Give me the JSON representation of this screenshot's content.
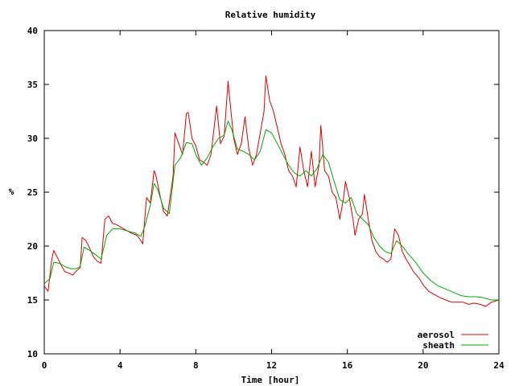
{
  "chart_data": {
    "type": "line",
    "title": "Relative humidity",
    "xlabel": "Time [hour]",
    "ylabel": "%",
    "xlim": [
      0,
      24
    ],
    "ylim": [
      10,
      40
    ],
    "x_ticks": [
      0,
      4,
      8,
      12,
      16,
      20,
      24
    ],
    "y_ticks": [
      10,
      15,
      20,
      25,
      30,
      35,
      40
    ],
    "grid": false,
    "legend_position": "bottom-right",
    "series": [
      {
        "name": "aerosol",
        "color": "#dd0000",
        "points": [
          [
            0.0,
            16.3
          ],
          [
            0.2,
            15.8
          ],
          [
            0.4,
            18.8
          ],
          [
            0.5,
            19.6
          ],
          [
            0.7,
            18.9
          ],
          [
            0.9,
            18.2
          ],
          [
            1.1,
            17.6
          ],
          [
            1.3,
            17.5
          ],
          [
            1.5,
            17.3
          ],
          [
            1.7,
            17.7
          ],
          [
            1.9,
            18.0
          ],
          [
            2.0,
            20.8
          ],
          [
            2.2,
            20.5
          ],
          [
            2.4,
            19.8
          ],
          [
            2.6,
            19.0
          ],
          [
            2.8,
            18.6
          ],
          [
            3.0,
            18.4
          ],
          [
            3.2,
            22.5
          ],
          [
            3.4,
            22.8
          ],
          [
            3.6,
            22.1
          ],
          [
            3.8,
            22.0
          ],
          [
            4.0,
            21.8
          ],
          [
            4.3,
            21.5
          ],
          [
            4.6,
            21.2
          ],
          [
            4.9,
            21.0
          ],
          [
            5.1,
            20.5
          ],
          [
            5.2,
            20.2
          ],
          [
            5.4,
            24.5
          ],
          [
            5.6,
            24.0
          ],
          [
            5.8,
            27.0
          ],
          [
            5.9,
            26.5
          ],
          [
            6.1,
            24.8
          ],
          [
            6.3,
            23.2
          ],
          [
            6.5,
            22.8
          ],
          [
            6.8,
            26.5
          ],
          [
            6.9,
            30.5
          ],
          [
            7.1,
            29.5
          ],
          [
            7.3,
            28.5
          ],
          [
            7.5,
            32.3
          ],
          [
            7.6,
            32.4
          ],
          [
            7.8,
            30.0
          ],
          [
            8.0,
            29.3
          ],
          [
            8.2,
            28.0
          ],
          [
            8.4,
            27.8
          ],
          [
            8.6,
            27.5
          ],
          [
            8.8,
            28.5
          ],
          [
            9.0,
            31.5
          ],
          [
            9.1,
            33.0
          ],
          [
            9.3,
            29.5
          ],
          [
            9.5,
            30.2
          ],
          [
            9.7,
            35.3
          ],
          [
            9.8,
            33.5
          ],
          [
            10.0,
            30.0
          ],
          [
            10.2,
            28.5
          ],
          [
            10.4,
            29.5
          ],
          [
            10.6,
            32.0
          ],
          [
            10.8,
            29.0
          ],
          [
            11.0,
            27.5
          ],
          [
            11.2,
            28.5
          ],
          [
            11.4,
            30.5
          ],
          [
            11.6,
            32.5
          ],
          [
            11.7,
            35.8
          ],
          [
            11.9,
            33.5
          ],
          [
            12.1,
            32.5
          ],
          [
            12.3,
            31.0
          ],
          [
            12.5,
            29.5
          ],
          [
            12.7,
            28.5
          ],
          [
            12.9,
            27.0
          ],
          [
            13.1,
            26.5
          ],
          [
            13.3,
            25.5
          ],
          [
            13.5,
            29.2
          ],
          [
            13.7,
            27.0
          ],
          [
            13.9,
            25.5
          ],
          [
            14.1,
            28.8
          ],
          [
            14.3,
            25.5
          ],
          [
            14.5,
            27.5
          ],
          [
            14.6,
            31.2
          ],
          [
            14.8,
            27.0
          ],
          [
            15.0,
            26.5
          ],
          [
            15.2,
            25.0
          ],
          [
            15.4,
            24.5
          ],
          [
            15.6,
            22.5
          ],
          [
            15.8,
            24.5
          ],
          [
            15.9,
            26.0
          ],
          [
            16.1,
            24.5
          ],
          [
            16.3,
            22.5
          ],
          [
            16.4,
            21.0
          ],
          [
            16.6,
            22.5
          ],
          [
            16.8,
            23.0
          ],
          [
            16.9,
            24.8
          ],
          [
            17.1,
            22.5
          ],
          [
            17.3,
            20.5
          ],
          [
            17.5,
            19.5
          ],
          [
            17.7,
            19.0
          ],
          [
            17.9,
            18.8
          ],
          [
            18.1,
            18.5
          ],
          [
            18.3,
            18.8
          ],
          [
            18.5,
            21.6
          ],
          [
            18.7,
            21.0
          ],
          [
            18.9,
            19.5
          ],
          [
            19.1,
            18.8
          ],
          [
            19.3,
            18.2
          ],
          [
            19.5,
            17.6
          ],
          [
            19.8,
            17.0
          ],
          [
            20.0,
            16.4
          ],
          [
            20.3,
            15.8
          ],
          [
            20.6,
            15.5
          ],
          [
            20.9,
            15.2
          ],
          [
            21.2,
            15.0
          ],
          [
            21.5,
            14.8
          ],
          [
            21.8,
            14.8
          ],
          [
            22.1,
            14.8
          ],
          [
            22.4,
            14.6
          ],
          [
            22.7,
            14.7
          ],
          [
            23.0,
            14.6
          ],
          [
            23.3,
            14.4
          ],
          [
            23.6,
            14.8
          ],
          [
            24.0,
            15.0
          ]
        ]
      },
      {
        "name": "sheath",
        "color": "#00aa00",
        "points": [
          [
            0.0,
            16.5
          ],
          [
            0.3,
            17.0
          ],
          [
            0.5,
            18.5
          ],
          [
            0.8,
            18.4
          ],
          [
            1.1,
            18.1
          ],
          [
            1.4,
            17.9
          ],
          [
            1.7,
            17.9
          ],
          [
            1.9,
            18.1
          ],
          [
            2.1,
            19.9
          ],
          [
            2.4,
            19.6
          ],
          [
            2.7,
            19.2
          ],
          [
            3.0,
            18.8
          ],
          [
            3.3,
            21.0
          ],
          [
            3.6,
            21.6
          ],
          [
            4.0,
            21.6
          ],
          [
            4.4,
            21.4
          ],
          [
            4.8,
            21.2
          ],
          [
            5.1,
            20.9
          ],
          [
            5.3,
            21.8
          ],
          [
            5.6,
            23.8
          ],
          [
            5.8,
            25.8
          ],
          [
            6.0,
            25.2
          ],
          [
            6.3,
            23.5
          ],
          [
            6.6,
            23.0
          ],
          [
            6.9,
            27.5
          ],
          [
            7.2,
            28.2
          ],
          [
            7.5,
            29.6
          ],
          [
            7.8,
            29.5
          ],
          [
            8.0,
            28.5
          ],
          [
            8.3,
            27.5
          ],
          [
            8.6,
            28.2
          ],
          [
            8.9,
            29.2
          ],
          [
            9.2,
            30.0
          ],
          [
            9.5,
            30.3
          ],
          [
            9.7,
            31.6
          ],
          [
            9.9,
            30.8
          ],
          [
            10.2,
            29.0
          ],
          [
            10.5,
            28.8
          ],
          [
            10.8,
            28.5
          ],
          [
            11.1,
            28.0
          ],
          [
            11.4,
            28.8
          ],
          [
            11.7,
            30.8
          ],
          [
            12.0,
            30.5
          ],
          [
            12.3,
            29.5
          ],
          [
            12.6,
            28.5
          ],
          [
            12.9,
            27.5
          ],
          [
            13.2,
            26.8
          ],
          [
            13.5,
            26.5
          ],
          [
            13.8,
            27.0
          ],
          [
            14.1,
            26.5
          ],
          [
            14.4,
            27.2
          ],
          [
            14.7,
            28.5
          ],
          [
            15.0,
            27.8
          ],
          [
            15.3,
            26.0
          ],
          [
            15.6,
            24.3
          ],
          [
            15.9,
            24.0
          ],
          [
            16.2,
            24.5
          ],
          [
            16.5,
            23.0
          ],
          [
            16.8,
            22.5
          ],
          [
            17.1,
            22.0
          ],
          [
            17.4,
            20.8
          ],
          [
            17.7,
            20.0
          ],
          [
            18.0,
            19.5
          ],
          [
            18.3,
            19.3
          ],
          [
            18.6,
            20.5
          ],
          [
            18.9,
            20.0
          ],
          [
            19.2,
            19.3
          ],
          [
            19.6,
            18.5
          ],
          [
            20.0,
            17.5
          ],
          [
            20.4,
            16.8
          ],
          [
            20.8,
            16.3
          ],
          [
            21.2,
            16.0
          ],
          [
            21.6,
            15.7
          ],
          [
            22.0,
            15.4
          ],
          [
            22.4,
            15.3
          ],
          [
            22.8,
            15.3
          ],
          [
            23.2,
            15.2
          ],
          [
            23.6,
            15.0
          ],
          [
            24.0,
            15.0
          ]
        ]
      }
    ]
  }
}
